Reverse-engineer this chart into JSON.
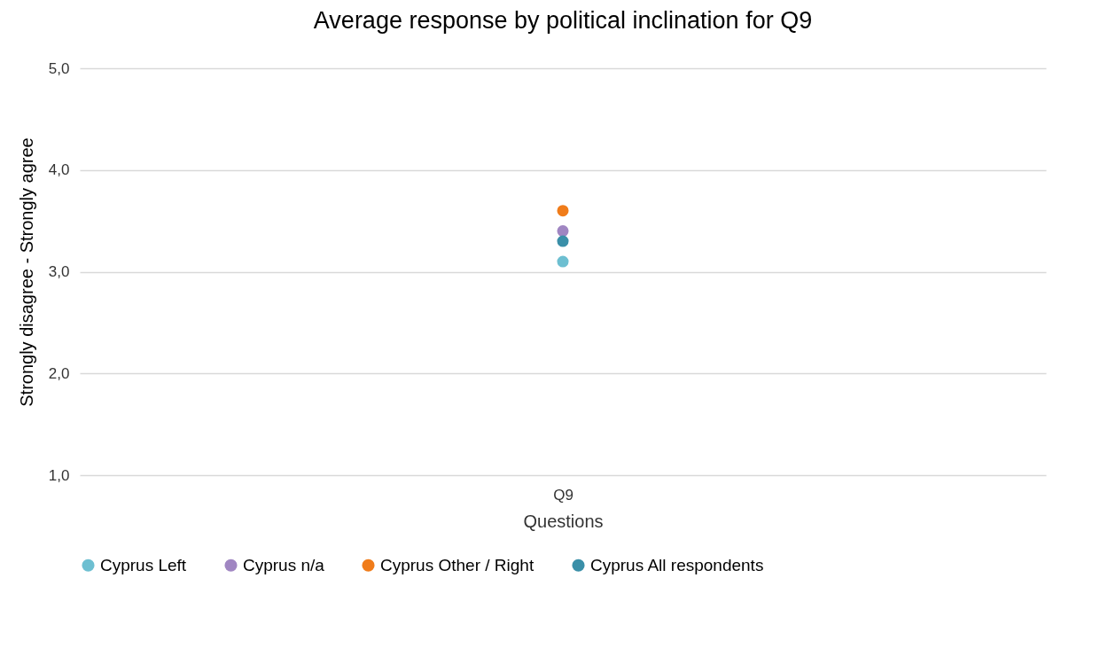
{
  "chart_data": {
    "type": "scatter",
    "title": "Average response by political inclination for Q9",
    "xlabel": "Questions",
    "ylabel": "Strongly disagree - Strongly agree",
    "categories": [
      "Q9"
    ],
    "series": [
      {
        "name": "Cyprus Left",
        "color": "#6dbfd1",
        "values": [
          3.1
        ]
      },
      {
        "name": "Cyprus n/a",
        "color": "#a086c2",
        "values": [
          3.4
        ]
      },
      {
        "name": "Cyprus Other / Right",
        "color": "#f07c1a",
        "values": [
          3.6
        ]
      },
      {
        "name": "Cyprus All respondents",
        "color": "#3a8fa8",
        "values": [
          3.3
        ]
      }
    ],
    "ylim": [
      1,
      5
    ],
    "yticks": [
      {
        "value": 1,
        "label": "1,0"
      },
      {
        "value": 2,
        "label": "2,0"
      },
      {
        "value": 3,
        "label": "3,0"
      },
      {
        "value": 4,
        "label": "4,0"
      },
      {
        "value": 5,
        "label": "5,0"
      }
    ],
    "grid": "y",
    "legend": "bottom",
    "marker": "circle"
  }
}
